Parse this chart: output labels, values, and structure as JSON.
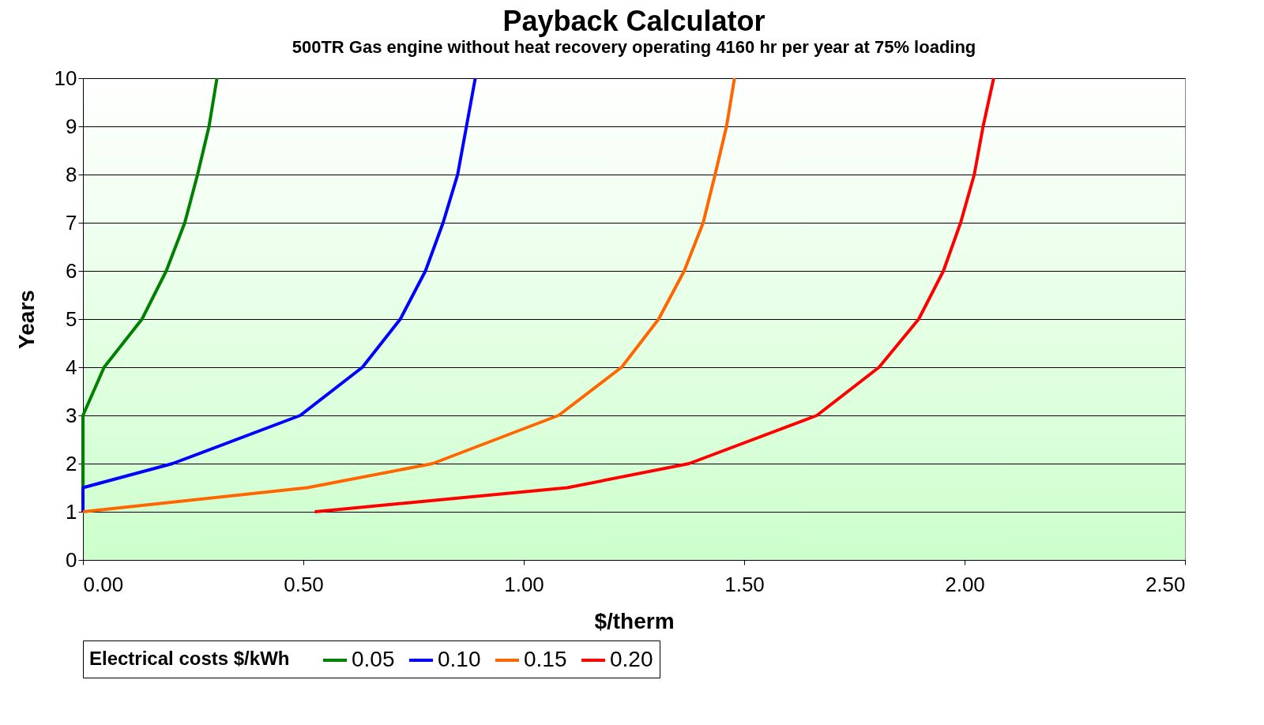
{
  "chart_data": {
    "type": "line",
    "title": "Payback Calculator",
    "subtitle": "500TR Gas engine without heat recovery operating 4160 hr per year at 75% loading",
    "xlabel": "$/therm",
    "ylabel": "Years",
    "legend_title": "Electrical costs $/kWh",
    "series": [
      {
        "name": "0.05",
        "color": "#008000",
        "x": [
          0,
          0,
          0,
          0,
          0.048,
          0.134,
          0.189,
          0.231,
          0.26,
          0.286,
          0.304
        ],
        "values": [
          1,
          1.5,
          2,
          3,
          4,
          5,
          6,
          7,
          8,
          9,
          10
        ]
      },
      {
        "name": "0.10",
        "color": "#0000ff",
        "x": [
          0,
          0,
          0.203,
          0.493,
          0.634,
          0.72,
          0.777,
          0.817,
          0.85,
          0.87,
          0.89
        ],
        "values": [
          1,
          1.5,
          2,
          3,
          4,
          5,
          6,
          7,
          8,
          9,
          10
        ]
      },
      {
        "name": "0.15",
        "color": "#ff6600",
        "x": [
          0,
          0.509,
          0.793,
          1.079,
          1.222,
          1.306,
          1.364,
          1.407,
          1.434,
          1.46,
          1.478
        ],
        "values": [
          1,
          1.5,
          2,
          3,
          4,
          5,
          6,
          7,
          8,
          9,
          10
        ]
      },
      {
        "name": "0.20",
        "color": "#ff0000",
        "x": [
          0.526,
          1.099,
          1.375,
          1.665,
          1.806,
          1.896,
          1.952,
          1.991,
          2.022,
          2.042,
          2.066
        ],
        "values": [
          1,
          1.5,
          2,
          3,
          4,
          5,
          6,
          7,
          8,
          9,
          10
        ]
      }
    ],
    "xlim": [
      0,
      2.5
    ],
    "xticks": [
      {
        "value": 0,
        "label": "0.00"
      },
      {
        "value": 0.5,
        "label": "0.50"
      },
      {
        "value": 1,
        "label": "1.00"
      },
      {
        "value": 1.5,
        "label": "1.50"
      },
      {
        "value": 2,
        "label": "2.00"
      },
      {
        "value": 2.5,
        "label": "2.50"
      }
    ],
    "ylim": [
      0,
      10
    ],
    "yticks": [
      0,
      1,
      2,
      3,
      4,
      5,
      6,
      7,
      8,
      9,
      10
    ],
    "grid": "y",
    "legend": "bottom",
    "marker": "none",
    "line_style": "solid"
  }
}
